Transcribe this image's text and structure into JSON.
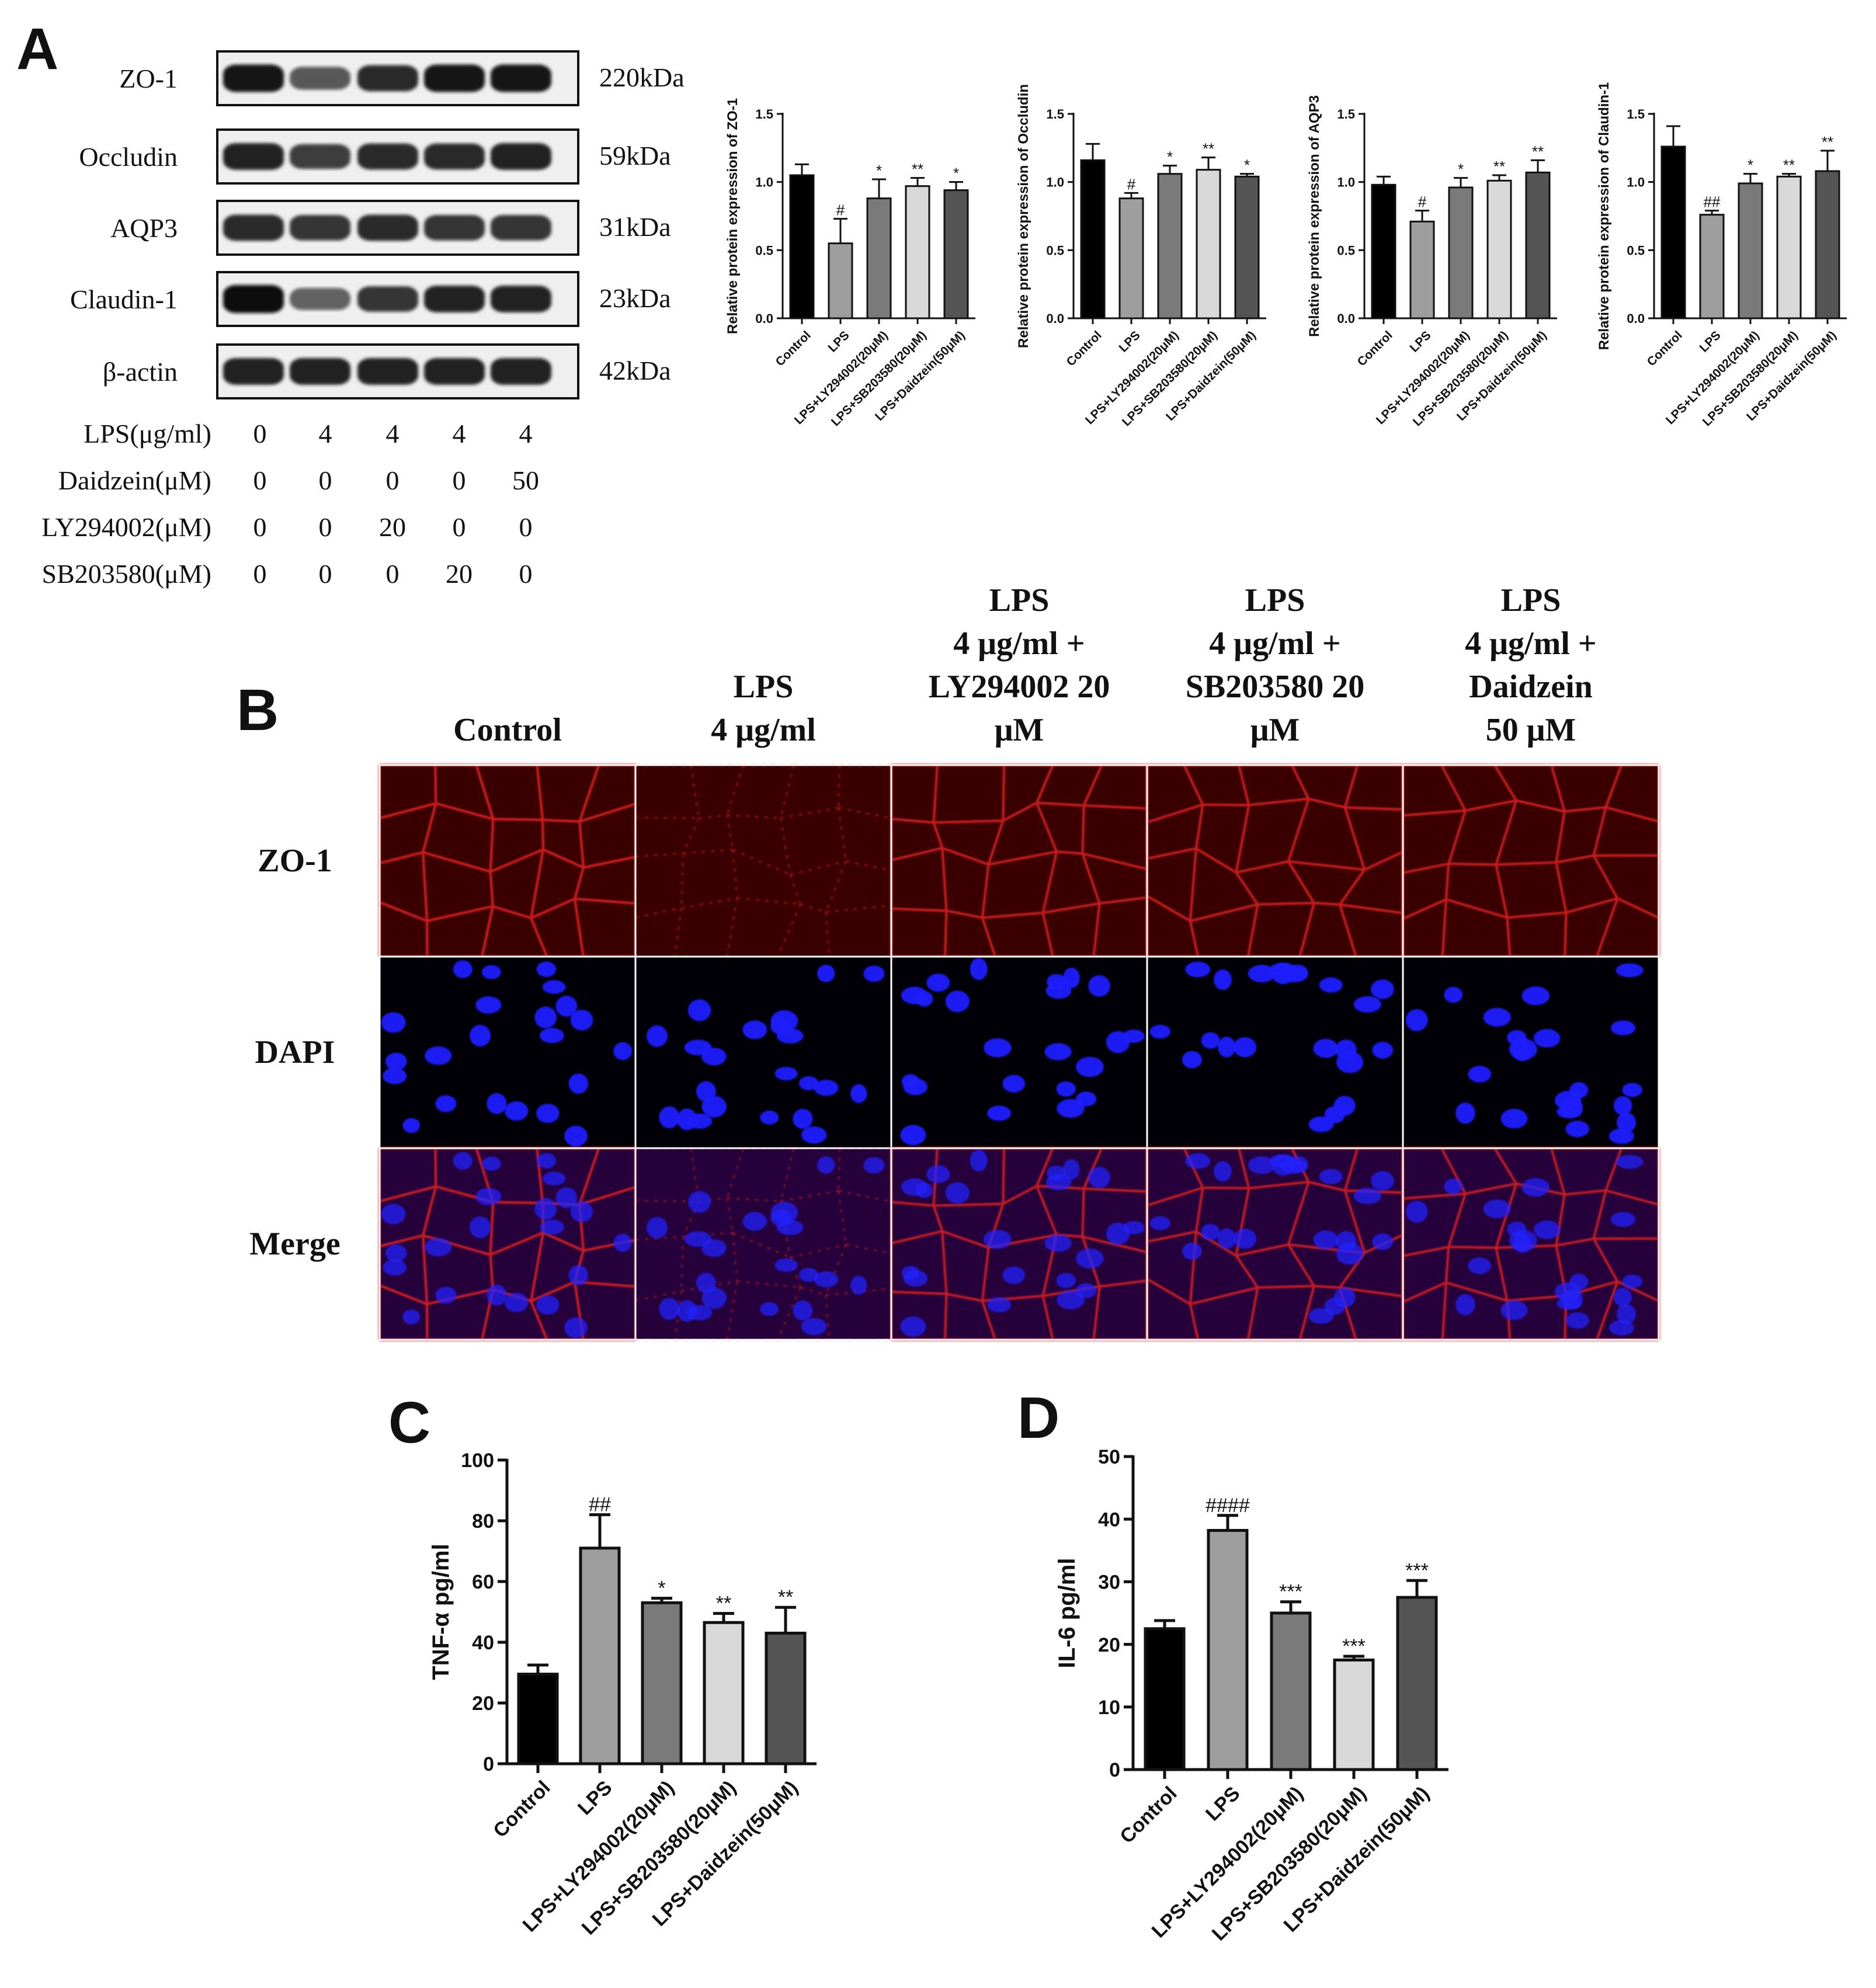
{
  "panel_labels": {
    "a": "A",
    "b": "B",
    "c": "C",
    "d": "D"
  },
  "colors": {
    "control": "#000000",
    "lps": "#9e9e9e",
    "ly": "#7a7a7a",
    "sb": "#d9d9d9",
    "daidzein": "#555555",
    "fluor_red": "#e02020",
    "fluor_blue": "#2020ff"
  },
  "panel_a": {
    "proteins": [
      {
        "name": "ZO-1",
        "kda": "220kDa",
        "intensity": [
          0.95,
          0.6,
          0.85,
          0.95,
          0.95
        ]
      },
      {
        "name": "Occludin",
        "kda": "59kDa",
        "intensity": [
          0.9,
          0.75,
          0.85,
          0.85,
          0.9
        ]
      },
      {
        "name": "AQP3",
        "kda": "31kDa",
        "intensity": [
          0.85,
          0.8,
          0.85,
          0.8,
          0.8
        ]
      },
      {
        "name": "Claudin-1",
        "kda": "23kDa",
        "intensity": [
          1.0,
          0.55,
          0.8,
          0.9,
          0.9
        ]
      },
      {
        "name": "β-actin",
        "kda": "42kDa",
        "intensity": [
          0.9,
          0.9,
          0.9,
          0.9,
          0.9
        ]
      }
    ],
    "treatments": [
      {
        "label": "LPS(μg/ml)",
        "values": [
          "0",
          "4",
          "4",
          "4",
          "4"
        ]
      },
      {
        "label": "Daidzein(μM)",
        "values": [
          "0",
          "0",
          "0",
          "0",
          "50"
        ]
      },
      {
        "label": "LY294002(μM)",
        "values": [
          "0",
          "0",
          "20",
          "0",
          "0"
        ]
      },
      {
        "label": "SB203580(μM)",
        "values": [
          "0",
          "0",
          "0",
          "20",
          "0"
        ]
      }
    ]
  },
  "chart_data": [
    {
      "type": "bar",
      "ylabel": "Relative protein expression of ZO-1",
      "ylim": [
        0,
        1.5
      ],
      "yticks": [
        "0.0",
        "0.5",
        "1.0",
        "1.5"
      ],
      "categories": [
        "Control",
        "LPS",
        "LPS+LY294002(20μM)",
        "LPS+SB203580(20μM)",
        "LPS+Daidzein(50μM)"
      ],
      "values": [
        1.05,
        0.55,
        0.88,
        0.97,
        0.94
      ],
      "errors": [
        0.08,
        0.18,
        0.14,
        0.06,
        0.06
      ],
      "annotations": [
        "",
        "#",
        "*",
        "**",
        "*"
      ]
    },
    {
      "type": "bar",
      "ylabel": "Relative protein expression of Occludin",
      "ylim": [
        0,
        1.5
      ],
      "yticks": [
        "0.0",
        "0.5",
        "1.0",
        "1.5"
      ],
      "categories": [
        "Control",
        "LPS",
        "LPS+LY294002(20μM)",
        "LPS+SB203580(20μM)",
        "LPS+Daidzein(50μM)"
      ],
      "values": [
        1.16,
        0.88,
        1.06,
        1.09,
        1.04
      ],
      "errors": [
        0.12,
        0.04,
        0.06,
        0.09,
        0.02
      ],
      "annotations": [
        "",
        "#",
        "*",
        "**",
        "*"
      ]
    },
    {
      "type": "bar",
      "ylabel": "Relative protein expression of AQP3",
      "ylim": [
        0,
        1.5
      ],
      "yticks": [
        "0.0",
        "0.5",
        "1.0",
        "1.5"
      ],
      "categories": [
        "Control",
        "LPS",
        "LPS+LY294002(20μM)",
        "LPS+SB203580(20μM)",
        "LPS+Daidzein(50μM)"
      ],
      "values": [
        0.98,
        0.71,
        0.96,
        1.01,
        1.07
      ],
      "errors": [
        0.06,
        0.08,
        0.07,
        0.04,
        0.09
      ],
      "annotations": [
        "",
        "#",
        "*",
        "**",
        "**"
      ]
    },
    {
      "type": "bar",
      "ylabel": "Relative protein expression of Claudin-1",
      "ylim": [
        0,
        1.5
      ],
      "yticks": [
        "0.0",
        "0.5",
        "1.0",
        "1.5"
      ],
      "categories": [
        "Control",
        "LPS",
        "LPS+LY294002(20μM)",
        "LPS+SB203580(20μM)",
        "LPS+Daidzein(50μM)"
      ],
      "values": [
        1.26,
        0.76,
        0.99,
        1.04,
        1.08
      ],
      "errors": [
        0.15,
        0.03,
        0.07,
        0.02,
        0.15
      ],
      "annotations": [
        "",
        "##",
        "*",
        "**",
        "**"
      ]
    },
    {
      "type": "bar",
      "ylabel": "TNF-α pg/ml",
      "ylim": [
        0,
        100
      ],
      "yticks": [
        "0",
        "20",
        "40",
        "60",
        "80",
        "100"
      ],
      "categories": [
        "Control",
        "LPS",
        "LPS+LY294002(20μM)",
        "LPS+SB203580(20μM)",
        "LPS+Daidzein(50μM)"
      ],
      "values": [
        29.5,
        71,
        53,
        46.5,
        43
      ],
      "errors": [
        3,
        11,
        1.5,
        3,
        8.5
      ],
      "annotations": [
        "",
        "##",
        "*",
        "**",
        "**"
      ]
    },
    {
      "type": "bar",
      "ylabel": "IL-6 pg/ml",
      "ylim": [
        0,
        50
      ],
      "yticks": [
        "0",
        "10",
        "20",
        "30",
        "40",
        "50"
      ],
      "categories": [
        "Control",
        "LPS",
        "LPS+LY294002(20μM)",
        "LPS+SB203580(20μM)",
        "LPS+Daidzein(50μM)"
      ],
      "values": [
        22.5,
        38.2,
        25,
        17.5,
        27.5
      ],
      "errors": [
        1.3,
        2.4,
        1.8,
        0.6,
        2.7
      ],
      "annotations": [
        "",
        "####",
        "***",
        "***",
        "***"
      ]
    }
  ],
  "panel_b": {
    "columns": [
      {
        "lines": [
          "Control"
        ]
      },
      {
        "lines": [
          "LPS",
          "4 μg/ml"
        ]
      },
      {
        "lines": [
          "LPS",
          "4 μg/ml +",
          "LY294002 20",
          "μM"
        ]
      },
      {
        "lines": [
          "LPS",
          "4 μg/ml +",
          "SB203580 20",
          "μM"
        ]
      },
      {
        "lines": [
          "LPS",
          "4 μg/ml +",
          "Daidzein",
          "50 μM"
        ]
      }
    ],
    "rows": [
      "ZO-1",
      "DAPI",
      "Merge"
    ],
    "junction_strength": [
      0.85,
      0.3,
      0.8,
      0.8,
      0.8
    ]
  }
}
